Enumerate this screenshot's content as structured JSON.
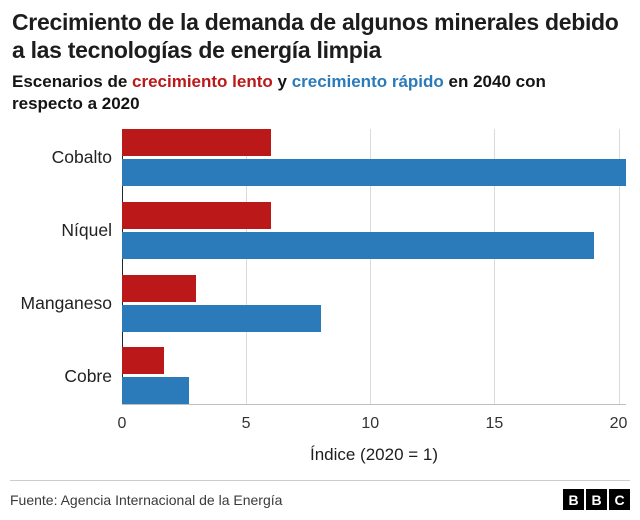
{
  "title": "Crecimiento de la demanda de algunos minerales debido a las tecnologías de energía limpia",
  "subtitle": {
    "prefix": "Escenarios de ",
    "slow_label": "crecimiento lento",
    "middle": " y ",
    "fast_label": "crecimiento rápido",
    "suffix": " en 2040 con respecto a 2020"
  },
  "colors": {
    "slow": "#bb1919",
    "fast": "#2b7bba"
  },
  "chart_data": {
    "type": "bar",
    "orientation": "horizontal",
    "title": "Crecimiento de la demanda de algunos minerales debido a las tecnologías de energía limpia",
    "categories": [
      "Cobalto",
      "Níquel",
      "Manganeso",
      "Cobre"
    ],
    "series": [
      {
        "name": "crecimiento lento",
        "key": "lento",
        "color": "#bb1919",
        "values": [
          6,
          6,
          3,
          1.7
        ]
      },
      {
        "name": "crecimiento rápido",
        "key": "rapido",
        "color": "#2b7bba",
        "values": [
          21,
          19,
          8,
          2.7
        ]
      }
    ],
    "xticks": [
      0,
      5,
      10,
      15,
      20
    ],
    "xmax": 20.3,
    "xlabel": "Índice (2020 = 1)",
    "grid": "vertical",
    "legend_position": "none"
  },
  "footer": {
    "source": "Fuente: Agencia Internacional de la Energía",
    "logo_letters": [
      "B",
      "B",
      "C"
    ]
  }
}
